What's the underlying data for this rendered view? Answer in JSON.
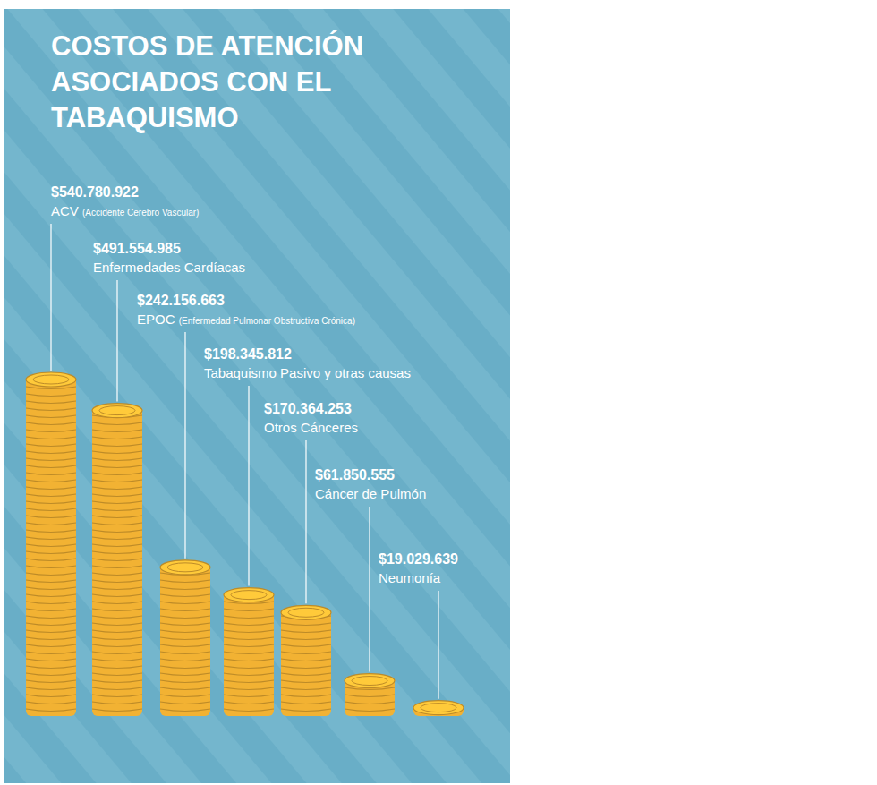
{
  "chart_data": {
    "type": "bar",
    "title": "COSTOS DE ATENCIÓN ASOCIADOS CON EL TABAQUISMO",
    "categories": [
      "ACV (Accidente Cerebro Vascular)",
      "Enfermedades Cardíacas",
      "EPOC (Enfermedad Pulmonar Obstructiva Crónica)",
      "Tabaquismo Pasivo y otras causas",
      "Otros Cánceres",
      "Cáncer de Pulmón",
      "Neumonía"
    ],
    "values": [
      540780922,
      491554985,
      242156663,
      198345812,
      170364253,
      61850555,
      19029639
    ],
    "value_labels": [
      "$540.780.922",
      "$491.554.985",
      "$242.156.663",
      "$198.345.812",
      "$170.364.253",
      "$61.850.555",
      "$19.029.639"
    ],
    "color": "#f2b233",
    "data_labels": true,
    "tick_labels": false
  }
}
